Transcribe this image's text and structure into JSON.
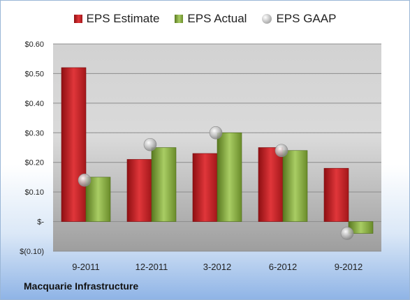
{
  "chart_data": {
    "type": "bar",
    "categories": [
      "9-2011",
      "12-2011",
      "3-2012",
      "6-2012",
      "9-2012"
    ],
    "series": [
      {
        "name": "EPS Estimate",
        "kind": "bar",
        "values": [
          0.52,
          0.21,
          0.23,
          0.25,
          0.18
        ]
      },
      {
        "name": "EPS Actual",
        "kind": "bar",
        "values": [
          0.15,
          0.25,
          0.3,
          0.24,
          -0.04
        ]
      },
      {
        "name": "EPS GAAP",
        "kind": "marker",
        "values": [
          0.14,
          0.26,
          0.3,
          0.24,
          -0.04
        ]
      }
    ],
    "ylim": [
      -0.1,
      0.6
    ],
    "yticks": [
      0.6,
      0.5,
      0.4,
      0.3,
      0.2,
      0.1,
      0,
      -0.1
    ],
    "ytick_labels": [
      "$0.60",
      "$0.50",
      "$0.40",
      "$0.30",
      "$0.20",
      "$0.10",
      "$-",
      "$(0.10)"
    ],
    "grid": true,
    "legend_position": "top-center",
    "colors": {
      "estimate": "#cc2a2e",
      "actual": "#8fb34a",
      "gaap": "#b8b8b8"
    }
  },
  "legend": {
    "estimate": "EPS Estimate",
    "actual": "EPS Actual",
    "gaap": "EPS GAAP"
  },
  "footer": {
    "company": "Macquarie Infrastructure"
  }
}
